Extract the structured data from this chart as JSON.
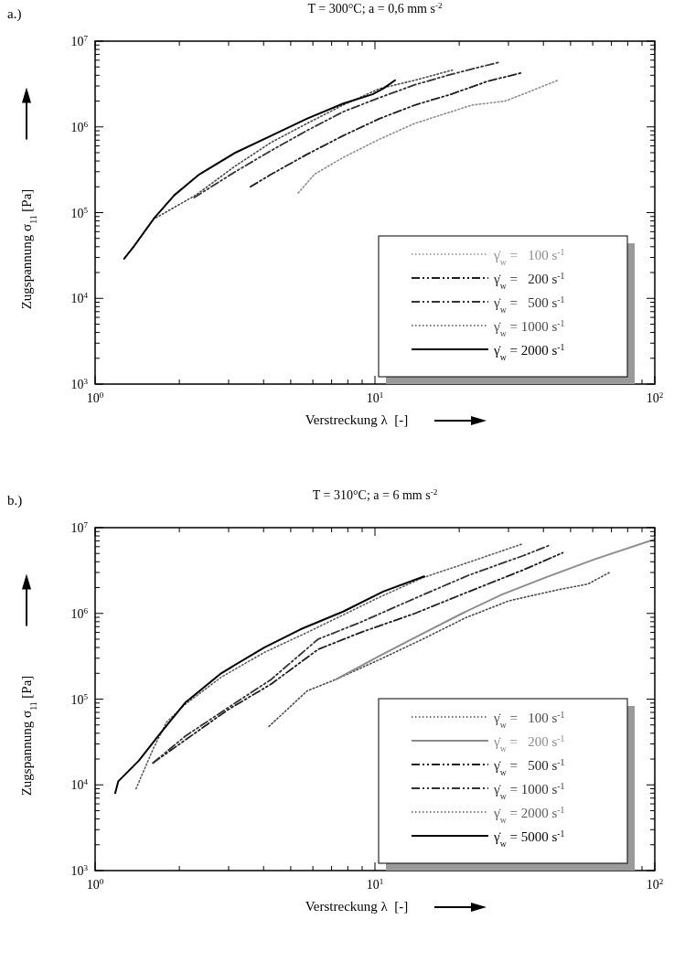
{
  "chart_data": [
    {
      "type": "line",
      "title": "T = 300°C; a = 0,6 mm s$^{-2}$",
      "xlabel": "Verstreckung λ  [-]",
      "ylabel": "Zugspannung σ$_{11}$ [Pa]",
      "annotations": [
        "a.)"
      ],
      "log": "xy",
      "xlim": [
        1,
        100
      ],
      "ylim": [
        1000,
        10000000
      ],
      "xticks": [
        {
          "value": 1,
          "label": "10$^{0}$"
        },
        {
          "value": 2,
          "label": null
        },
        {
          "value": 3,
          "label": null
        },
        {
          "value": 4,
          "label": null
        },
        {
          "value": 5,
          "label": null
        },
        {
          "value": 6,
          "label": null
        },
        {
          "value": 7,
          "label": null
        },
        {
          "value": 8,
          "label": null
        },
        {
          "value": 9,
          "label": null
        },
        {
          "value": 10,
          "label": "10$^{1}$"
        },
        {
          "value": 20,
          "label": null
        },
        {
          "value": 30,
          "label": null
        },
        {
          "value": 40,
          "label": null
        },
        {
          "value": 50,
          "label": null
        },
        {
          "value": 60,
          "label": null
        },
        {
          "value": 70,
          "label": null
        },
        {
          "value": 80,
          "label": null
        },
        {
          "value": 90,
          "label": null
        },
        {
          "value": 100,
          "label": "10$^{2}$"
        }
      ],
      "yticks": [
        {
          "value": 1000,
          "label": "10$^{3}$"
        },
        {
          "value": 2000,
          "label": null
        },
        {
          "value": 3000,
          "label": null
        },
        {
          "value": 4000,
          "label": null
        },
        {
          "value": 5000,
          "label": null
        },
        {
          "value": 6000,
          "label": null
        },
        {
          "value": 7000,
          "label": null
        },
        {
          "value": 8000,
          "label": null
        },
        {
          "value": 9000,
          "label": null
        },
        {
          "value": 10000,
          "label": "10$^{4}$"
        },
        {
          "value": 20000,
          "label": null
        },
        {
          "value": 30000,
          "label": null
        },
        {
          "value": 40000,
          "label": null
        },
        {
          "value": 50000,
          "label": null
        },
        {
          "value": 60000,
          "label": null
        },
        {
          "value": 70000,
          "label": null
        },
        {
          "value": 80000,
          "label": null
        },
        {
          "value": 90000,
          "label": null
        },
        {
          "value": 100000,
          "label": "10$^{5}$"
        },
        {
          "value": 200000,
          "label": null
        },
        {
          "value": 300000,
          "label": null
        },
        {
          "value": 400000,
          "label": null
        },
        {
          "value": 500000,
          "label": null
        },
        {
          "value": 600000,
          "label": null
        },
        {
          "value": 700000,
          "label": null
        },
        {
          "value": 800000,
          "label": null
        },
        {
          "value": 900000,
          "label": null
        },
        {
          "value": 1000000,
          "label": "10$^{6}$"
        },
        {
          "value": 2000000,
          "label": null
        },
        {
          "value": 3000000,
          "label": null
        },
        {
          "value": 4000000,
          "label": null
        },
        {
          "value": 5000000,
          "label": null
        },
        {
          "value": 6000000,
          "label": null
        },
        {
          "value": 7000000,
          "label": null
        },
        {
          "value": 8000000,
          "label": null
        },
        {
          "value": 9000000,
          "label": null
        },
        {
          "value": 10000000,
          "label": "10$^{7}$"
        }
      ],
      "legend": "bottom right",
      "series": [
        {
          "name": "γ̇$_{w}$ =   100 s$^{-1}$",
          "color": "#8c8c8c",
          "line_style": "dotted",
          "x": [
            5.32,
            6.08,
            7.7,
            10.4,
            13.9,
            18.7,
            22.3,
            29.2,
            35.9,
            45.1
          ],
          "values": [
            170000,
            280000,
            440000,
            720000,
            1100000,
            1500000,
            1800000,
            2000000,
            2600000,
            3500000
          ]
        },
        {
          "name": "γ̇$_{w}$ =   200 s$^{-1}$",
          "color": "#1e1e1e",
          "line_style": "dashed",
          "x": [
            3.59,
            4.26,
            5.73,
            7.7,
            10.4,
            13.9,
            18.7,
            25.2,
            33.8
          ],
          "values": [
            200000,
            280000,
            480000,
            790000,
            1250000,
            1800000,
            2400000,
            3400000,
            4300000
          ]
        },
        {
          "name": "γ̇$_{w}$ =   500 s$^{-1}$",
          "color": "#333333",
          "line_style": "dashed",
          "x": [
            2.26,
            3.17,
            4.26,
            5.73,
            7.7,
            10.4,
            13.9,
            18.7,
            27.9
          ],
          "values": [
            150000,
            300000,
            530000,
            910000,
            1500000,
            2200000,
            3100000,
            4100000,
            5700000
          ]
        },
        {
          "name": "γ̇$_{w}$ = 1000 s$^{-1}$",
          "color": "#4a4a4a",
          "line_style": "dotted",
          "x": [
            1.65,
            2.29,
            3.17,
            4.26,
            5.73,
            7.7,
            10.4,
            13.9,
            18.9
          ],
          "values": [
            87000,
            160000,
            350000,
            660000,
            1100000,
            1800000,
            2800000,
            3500000,
            4600000
          ]
        },
        {
          "name": "γ̇$_{w}$ = 2000 s$^{-1}$",
          "color": "#000000",
          "line_style": "solid",
          "x": [
            1.27,
            1.38,
            1.63,
            1.92,
            2.36,
            3.17,
            4.26,
            5.73,
            7.7,
            9.8,
            10.7,
            11.8
          ],
          "values": [
            29000,
            41000,
            87000,
            160000,
            280000,
            500000,
            790000,
            1250000,
            1870000,
            2400000,
            2800000,
            3500000
          ]
        }
      ]
    },
    {
      "type": "line",
      "title": "T = 310°C; a = 6 mm s$^{-2}$",
      "xlabel": "Verstreckung λ  [-]",
      "ylabel": "Zugspannung σ$_{11}$ [Pa]",
      "annotations": [
        "b.)"
      ],
      "log": "xy",
      "xlim": [
        1,
        100
      ],
      "ylim": [
        1000,
        10000000
      ],
      "xticks": [
        {
          "value": 1,
          "label": "10$^{0}$"
        },
        {
          "value": 2,
          "label": null
        },
        {
          "value": 3,
          "label": null
        },
        {
          "value": 4,
          "label": null
        },
        {
          "value": 5,
          "label": null
        },
        {
          "value": 6,
          "label": null
        },
        {
          "value": 7,
          "label": null
        },
        {
          "value": 8,
          "label": null
        },
        {
          "value": 9,
          "label": null
        },
        {
          "value": 10,
          "label": "10$^{1}$"
        },
        {
          "value": 20,
          "label": null
        },
        {
          "value": 30,
          "label": null
        },
        {
          "value": 40,
          "label": null
        },
        {
          "value": 50,
          "label": null
        },
        {
          "value": 60,
          "label": null
        },
        {
          "value": 70,
          "label": null
        },
        {
          "value": 80,
          "label": null
        },
        {
          "value": 90,
          "label": null
        },
        {
          "value": 100,
          "label": "10$^{2}$"
        }
      ],
      "yticks": [
        {
          "value": 1000,
          "label": "10$^{3}$"
        },
        {
          "value": 2000,
          "label": null
        },
        {
          "value": 3000,
          "label": null
        },
        {
          "value": 4000,
          "label": null
        },
        {
          "value": 5000,
          "label": null
        },
        {
          "value": 6000,
          "label": null
        },
        {
          "value": 7000,
          "label": null
        },
        {
          "value": 8000,
          "label": null
        },
        {
          "value": 9000,
          "label": null
        },
        {
          "value": 10000,
          "label": "10$^{4}$"
        },
        {
          "value": 20000,
          "label": null
        },
        {
          "value": 30000,
          "label": null
        },
        {
          "value": 40000,
          "label": null
        },
        {
          "value": 50000,
          "label": null
        },
        {
          "value": 60000,
          "label": null
        },
        {
          "value": 70000,
          "label": null
        },
        {
          "value": 80000,
          "label": null
        },
        {
          "value": 90000,
          "label": null
        },
        {
          "value": 100000,
          "label": "10$^{5}$"
        },
        {
          "value": 200000,
          "label": null
        },
        {
          "value": 300000,
          "label": null
        },
        {
          "value": 400000,
          "label": null
        },
        {
          "value": 500000,
          "label": null
        },
        {
          "value": 600000,
          "label": null
        },
        {
          "value": 700000,
          "label": null
        },
        {
          "value": 800000,
          "label": null
        },
        {
          "value": 900000,
          "label": null
        },
        {
          "value": 1000000,
          "label": "10$^{6}$"
        },
        {
          "value": 2000000,
          "label": null
        },
        {
          "value": 3000000,
          "label": null
        },
        {
          "value": 4000000,
          "label": null
        },
        {
          "value": 5000000,
          "label": null
        },
        {
          "value": 6000000,
          "label": null
        },
        {
          "value": 7000000,
          "label": null
        },
        {
          "value": 8000000,
          "label": null
        },
        {
          "value": 9000000,
          "label": null
        },
        {
          "value": 10000000,
          "label": "10$^{7}$"
        }
      ],
      "legend": "bottom right",
      "series": [
        {
          "name": "γ̇$_{w}$ =   100 s$^{-1}$",
          "color": "#4a4a4a",
          "line_style": "dotted",
          "x": [
            4.18,
            5.73,
            7.26,
            10.4,
            14.8,
            21.1,
            30.1,
            45.5,
            57.7,
            68.9
          ],
          "values": [
            48000,
            125000,
            170000,
            290000,
            500000,
            890000,
            1400000,
            1900000,
            2200000,
            3000000
          ]
        },
        {
          "name": "γ̇$_{w}$ =   200 s$^{-1}$",
          "color": "#8c8c8c",
          "line_style": "solid",
          "x": [
            7.26,
            10.4,
            14.8,
            20.5,
            28.3,
            40.4,
            61.2,
            100
          ],
          "values": [
            170000,
            320000,
            580000,
            1000000,
            1650000,
            2600000,
            4300000,
            7300000
          ]
        },
        {
          "name": "γ̇$_{w}$ =   500 s$^{-1}$",
          "color": "#1e1e1e",
          "line_style": "dashed",
          "x": [
            1.61,
            2.98,
            4.26,
            6.26,
            8.9,
            13.9,
            21.7,
            33.8,
            46.9
          ],
          "values": [
            18000,
            75000,
            150000,
            380000,
            600000,
            1000000,
            1800000,
            3200000,
            5100000
          ]
        },
        {
          "name": "γ̇$_{w}$ = 1000 s$^{-1}$",
          "color": "#333333",
          "line_style": "dashed",
          "x": [
            1.61,
            2.1,
            2.98,
            4.26,
            6.26,
            8.9,
            13.9,
            21.7,
            33.8,
            41.9
          ],
          "values": [
            18000,
            37000,
            79000,
            170000,
            500000,
            790000,
            1500000,
            2800000,
            4700000,
            6200000
          ]
        },
        {
          "name": "γ̇$_{w}$ = 2000 s$^{-1}$",
          "color": "#5e5e5e",
          "line_style": "dotted",
          "x": [
            1.4,
            1.61,
            1.8,
            2.1,
            2.82,
            4.02,
            5.73,
            7.7,
            10.4,
            14.8,
            22.4,
            33.8
          ],
          "values": [
            9000,
            26000,
            54000,
            87000,
            180000,
            350000,
            600000,
            960000,
            1550000,
            2600000,
            4100000,
            6500000
          ]
        },
        {
          "name": "γ̇$_{w}$ = 5000 s$^{-1}$",
          "color": "#000000",
          "line_style": "solid",
          "x": [
            1.18,
            1.21,
            1.43,
            1.7,
            2.1,
            2.82,
            4.02,
            5.41,
            7.7,
            10.7,
            15
          ],
          "values": [
            8000,
            11000,
            19000,
            39000,
            91000,
            200000,
            400000,
            650000,
            1050000,
            1800000,
            2700000
          ]
        }
      ]
    }
  ]
}
